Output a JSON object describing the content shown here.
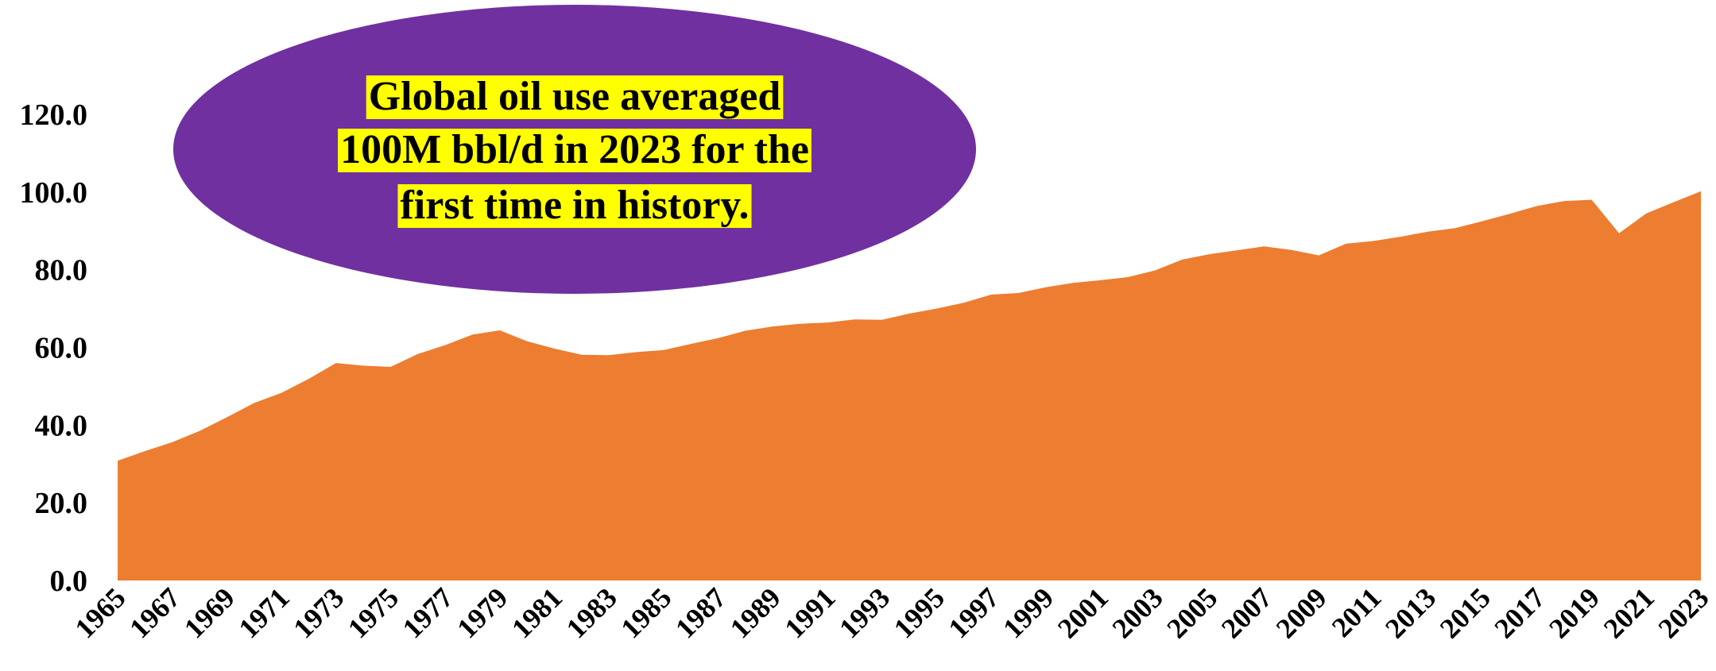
{
  "chart_data": {
    "type": "area",
    "title": "",
    "xlabel": "",
    "ylabel": "",
    "ylim": [
      0,
      120
    ],
    "yticks": [
      "0.0",
      "20.0",
      "40.0",
      "60.0",
      "80.0",
      "100.0",
      "120.0"
    ],
    "x_tick_labels": [
      "1965",
      "1967",
      "1969",
      "1971",
      "1973",
      "1975",
      "1977",
      "1979",
      "1981",
      "1983",
      "1985",
      "1987",
      "1989",
      "1991",
      "1993",
      "1995",
      "1997",
      "1999",
      "2001",
      "2003",
      "2005",
      "2007",
      "2009",
      "2011",
      "2013",
      "2015",
      "2017",
      "2019",
      "2021",
      "2023"
    ],
    "grid": false,
    "legend": "none",
    "series": [
      {
        "color": "#ED7D31",
        "x": [
          1965,
          1966,
          1967,
          1968,
          1969,
          1970,
          1971,
          1972,
          1973,
          1974,
          1975,
          1976,
          1977,
          1978,
          1979,
          1980,
          1981,
          1982,
          1983,
          1984,
          1985,
          1986,
          1987,
          1988,
          1989,
          1990,
          1991,
          1992,
          1993,
          1994,
          1995,
          1996,
          1997,
          1998,
          1999,
          2000,
          2001,
          2002,
          2003,
          2004,
          2005,
          2006,
          2007,
          2008,
          2009,
          2010,
          2011,
          2012,
          2013,
          2014,
          2015,
          2016,
          2017,
          2018,
          2019,
          2020,
          2021,
          2022,
          2023
        ],
        "values": [
          30.8,
          33.3,
          35.6,
          38.5,
          42.0,
          45.7,
          48.3,
          51.9,
          56.0,
          55.3,
          55.0,
          58.3,
          60.6,
          63.3,
          64.4,
          61.6,
          59.7,
          58.1,
          58.0,
          58.8,
          59.3,
          60.9,
          62.4,
          64.3,
          65.4,
          66.1,
          66.4,
          67.2,
          67.1,
          68.7,
          70.0,
          71.5,
          73.6,
          74.0,
          75.5,
          76.6,
          77.3,
          78.1,
          79.8,
          82.6,
          84.0,
          85.0,
          86.0,
          85.1,
          83.7,
          86.7,
          87.4,
          88.5,
          89.8,
          90.7,
          92.5,
          94.4,
          96.4,
          97.7,
          98.0,
          89.4,
          94.5,
          97.4,
          100.2
        ]
      }
    ],
    "annotation": {
      "lines": [
        "Global oil use averaged ",
        "100M bbl/d in 2023 for the ",
        "first time in history."
      ],
      "ellipse_color": "#7030A0",
      "highlight_color": "#FFFF00"
    }
  }
}
